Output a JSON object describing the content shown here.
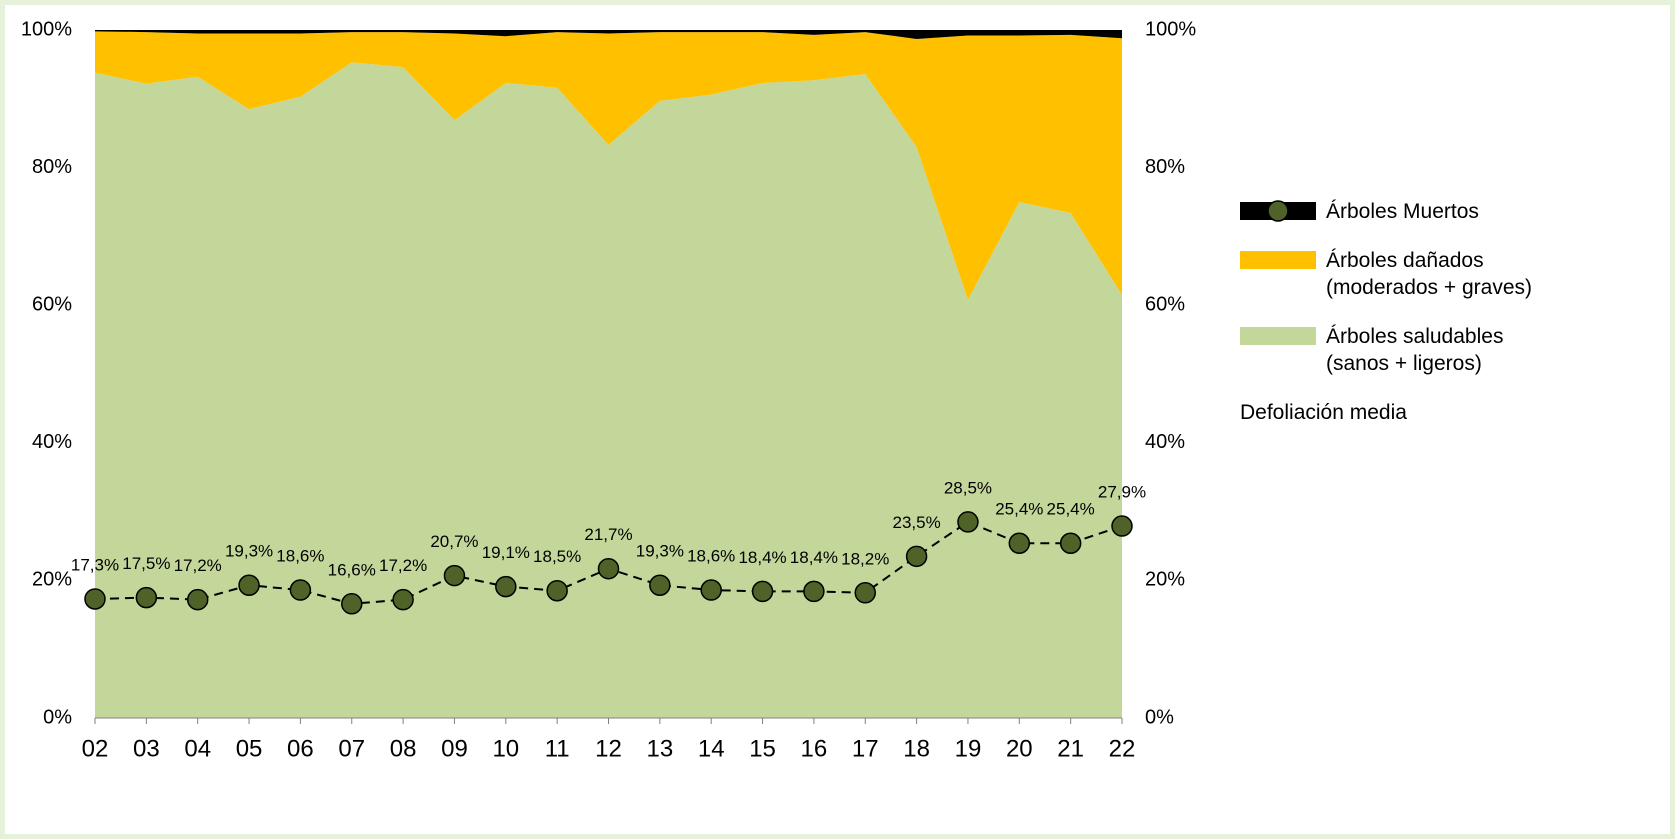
{
  "chart_data": {
    "type": "stacked-area-line",
    "categories": [
      "02",
      "03",
      "04",
      "05",
      "06",
      "07",
      "08",
      "09",
      "10",
      "11",
      "12",
      "13",
      "14",
      "15",
      "16",
      "17",
      "18",
      "19",
      "20",
      "21",
      "22"
    ],
    "series": [
      {
        "name": "Árboles saludables (sanos + ligeros)",
        "color": "#c4d79b",
        "kind": "area",
        "values": [
          93.8,
          92.2,
          93.2,
          88.5,
          90.3,
          95.3,
          94.6,
          86.9,
          92.3,
          91.6,
          83.3,
          89.7,
          90.6,
          92.3,
          92.7,
          93.6,
          83.0,
          60.8,
          75.0,
          73.4,
          61.5
        ]
      },
      {
        "name": "Árboles dañados (moderados + graves)",
        "color": "#ffc000",
        "kind": "area",
        "values": [
          6.0,
          7.5,
          6.3,
          11.0,
          9.2,
          4.4,
          5.1,
          12.6,
          6.8,
          8.1,
          16.2,
          10.0,
          9.1,
          7.4,
          6.6,
          6.1,
          15.7,
          38.4,
          24.2,
          25.9,
          37.3
        ]
      },
      {
        "name": "Árboles Muertos",
        "color": "#000000",
        "kind": "area",
        "values": [
          0.2,
          0.3,
          0.5,
          0.5,
          0.5,
          0.3,
          0.3,
          0.5,
          0.9,
          0.3,
          0.5,
          0.3,
          0.3,
          0.3,
          0.7,
          0.3,
          1.3,
          0.8,
          0.8,
          0.7,
          1.2
        ]
      },
      {
        "name": "Defoliación media",
        "color": "#4f6228",
        "kind": "line",
        "values": [
          17.3,
          17.5,
          17.2,
          19.3,
          18.6,
          16.6,
          17.2,
          20.7,
          19.1,
          18.5,
          21.7,
          19.3,
          18.6,
          18.4,
          18.4,
          18.2,
          23.5,
          28.5,
          25.4,
          25.4,
          27.9
        ],
        "value_labels": [
          "17,3%",
          "17,5%",
          "17,2%",
          "19,3%",
          "18,6%",
          "16,6%",
          "17,2%",
          "20,7%",
          "19,1%",
          "18,5%",
          "21,7%",
          "19,3%",
          "18,6%",
          "18,4%",
          "18,4%",
          "18,2%",
          "23,5%",
          "28,5%",
          "25,4%",
          "25,4%",
          "27,9%"
        ]
      }
    ],
    "ylim": [
      0,
      100
    ],
    "yticks": [
      {
        "value": 0,
        "label": "0%"
      },
      {
        "value": 20,
        "label": "20%"
      },
      {
        "value": 40,
        "label": "40%"
      },
      {
        "value": 60,
        "label": "60%"
      },
      {
        "value": 80,
        "label": "80%"
      },
      {
        "value": 100,
        "label": "100%"
      }
    ],
    "y2lim": [
      0,
      100
    ],
    "y2ticks": [
      {
        "value": 0,
        "label": "0%"
      },
      {
        "value": 20,
        "label": "20%"
      },
      {
        "value": 40,
        "label": "40%"
      },
      {
        "value": 60,
        "label": "60%"
      },
      {
        "value": 80,
        "label": "80%"
      },
      {
        "value": 100,
        "label": "100%"
      }
    ],
    "legend_order": [
      2,
      1,
      0,
      3
    ]
  }
}
